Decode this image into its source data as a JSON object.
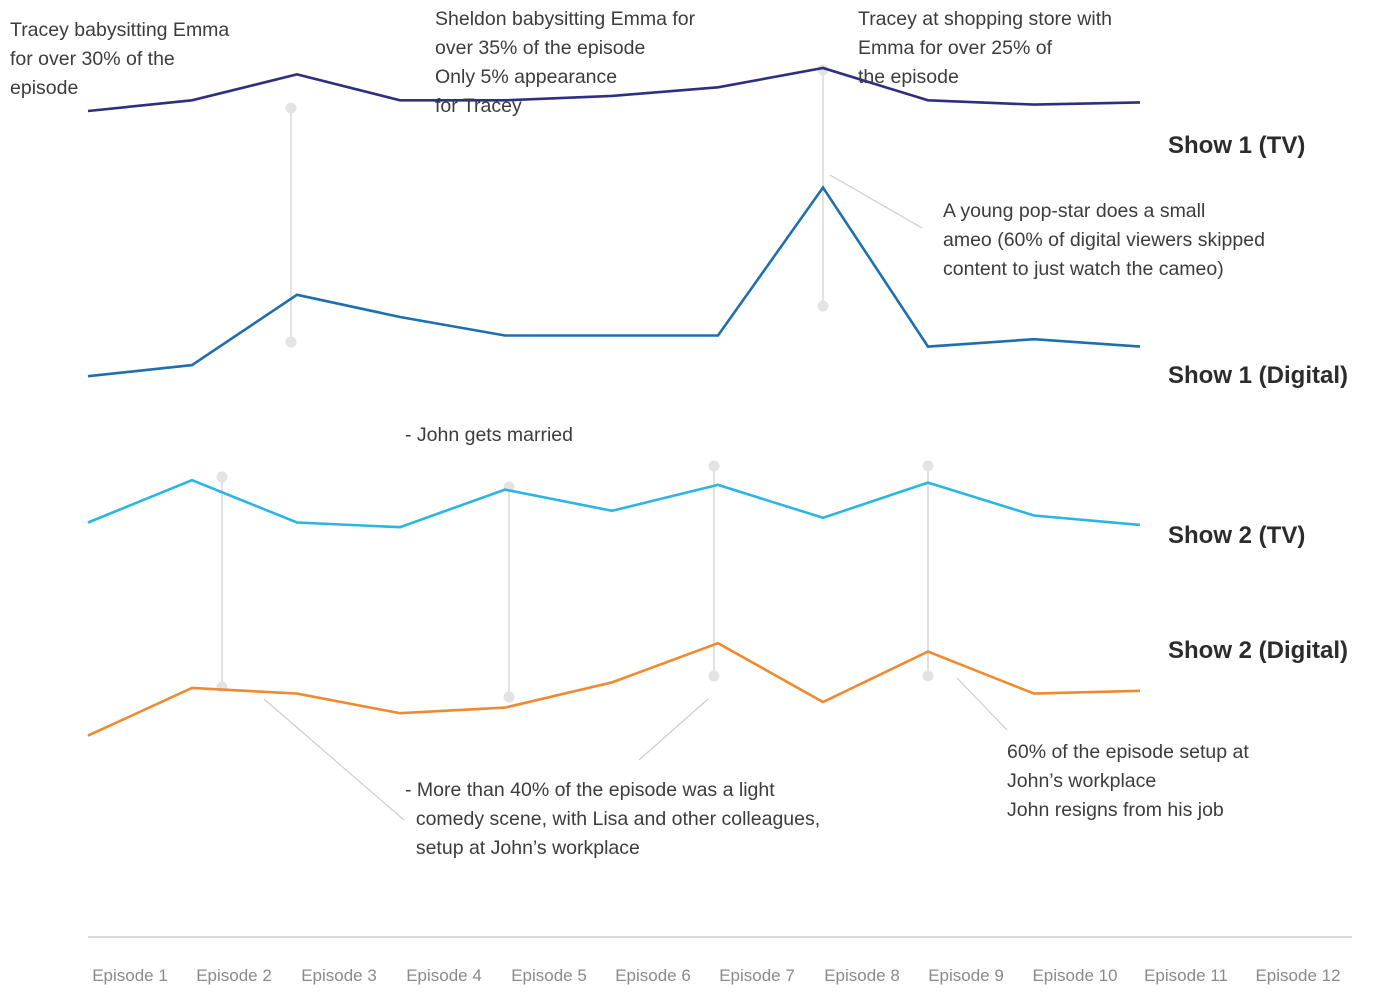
{
  "chart_data": {
    "type": "line",
    "categories": [
      "Episode 1",
      "Episode 2",
      "Episode 3",
      "Episode 4",
      "Episode 5",
      "Episode 6",
      "Episode 7",
      "Episode 8",
      "Episode 9",
      "Episode 10",
      "Episode 11",
      "Episode 12"
    ],
    "series": [
      {
        "name": "Show 1 (TV)",
        "color": "#2e2f7f",
        "values": [
          60,
          65,
          77,
          65,
          65,
          67,
          71,
          80,
          65,
          63,
          64,
          null
        ]
      },
      {
        "name": "Show 1 (Digital)",
        "color": "#1f6fae",
        "values": [
          24,
          27,
          46,
          40,
          35,
          35,
          35,
          75,
          32,
          34,
          32,
          null
        ]
      },
      {
        "name": "Show 2 (TV)",
        "color": "#2bb5e3",
        "values": [
          50,
          68,
          50,
          48,
          64,
          55,
          66,
          52,
          67,
          53,
          49,
          null
        ]
      },
      {
        "name": "Show 2 (Digital)",
        "color": "#ef8a30",
        "values": [
          23,
          40,
          38,
          31,
          33,
          42,
          56,
          35,
          53,
          38,
          39,
          null
        ]
      }
    ],
    "annotations": [
      "Tracey babysitting Emma\nfor over 30% of the\nepisode",
      "Sheldon babysitting Emma for\nover 35% of the episode\nOnly 5% appearance\nfor Tracey",
      "Tracey at shopping store with\nEmma for over 25% of\nthe episode",
      "A young pop-star does a small\nameo (60% of digital viewers skipped\ncontent to just watch the cameo)",
      "- John gets married",
      "- More than 40% of the episode was a light\n  comedy scene, with Lisa and other colleagues,\n  setup at John’s workplace",
      "60% of the episode setup at\nJohn’s workplace\nJohn resigns from his job"
    ],
    "legend": "series labels at right end of lines",
    "grid": false
  }
}
